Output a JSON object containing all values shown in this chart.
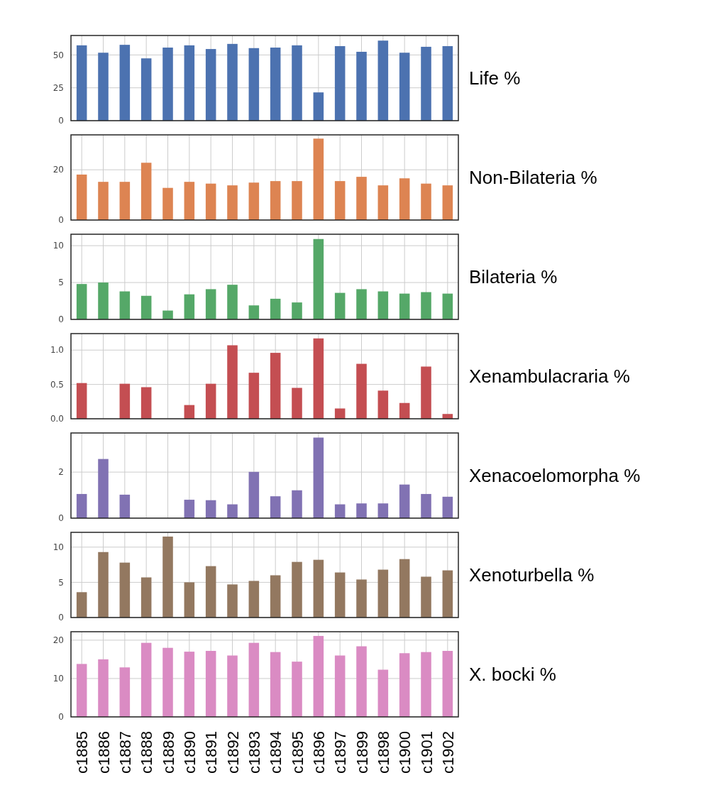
{
  "chart_data": [
    {
      "type": "bar",
      "ylabel": "Life %",
      "categories": [
        null,
        null,
        null,
        null,
        null,
        null,
        null,
        null,
        null,
        null,
        null,
        null,
        null,
        null,
        null,
        null,
        null,
        null
      ],
      "values": [
        57.3,
        51.7,
        57.7,
        47.4,
        55.6,
        57.3,
        54.5,
        58.4,
        55.2,
        55.6,
        57.3,
        21.5,
        56.7,
        52.4,
        60.9,
        51.7,
        56.2,
        56.7
      ],
      "color": "#4c72b0",
      "ylim": [
        0,
        64.8
      ],
      "yticks": [
        0,
        25,
        50
      ],
      "grid": true,
      "tick_labels": "y"
    },
    {
      "type": "bar",
      "ylabel": "Non-Bilateria %",
      "categories": [
        null,
        null,
        null,
        null,
        null,
        null,
        null,
        null,
        null,
        null,
        null,
        null,
        null,
        null,
        null,
        null,
        null,
        null
      ],
      "values": [
        18.1,
        15.2,
        15.2,
        22.8,
        12.8,
        15.2,
        14.5,
        13.8,
        14.9,
        15.5,
        15.5,
        32.4,
        15.5,
        17.2,
        13.8,
        16.6,
        14.5,
        13.8
      ],
      "color": "#dd8452",
      "ylim": [
        0,
        33.9
      ],
      "yticks": [
        0,
        20
      ],
      "grid": true,
      "tick_labels": "y"
    },
    {
      "type": "bar",
      "ylabel": "Bilateria %",
      "categories": [
        null,
        null,
        null,
        null,
        null,
        null,
        null,
        null,
        null,
        null,
        null,
        null,
        null,
        null,
        null,
        null,
        null,
        null
      ],
      "values": [
        4.8,
        5.0,
        3.8,
        3.2,
        1.2,
        3.4,
        4.1,
        4.7,
        1.9,
        2.8,
        2.3,
        10.9,
        3.6,
        4.1,
        3.8,
        3.5,
        3.7,
        3.5
      ],
      "color": "#55a868",
      "ylim": [
        0,
        11.55
      ],
      "yticks": [
        0,
        5,
        10
      ],
      "grid": true,
      "tick_labels": "y"
    },
    {
      "type": "bar",
      "ylabel": "Xenambulacraria %",
      "categories": [
        null,
        null,
        null,
        null,
        null,
        null,
        null,
        null,
        null,
        null,
        null,
        null,
        null,
        null,
        null,
        null,
        null,
        null
      ],
      "values": [
        0.52,
        0,
        0.51,
        0.46,
        0,
        0.2,
        0.51,
        1.07,
        0.67,
        0.96,
        0.45,
        1.17,
        0.15,
        0.8,
        0.41,
        0.23,
        0.76,
        0.07
      ],
      "color": "#c44e52",
      "ylim": [
        0,
        1.24
      ],
      "yticks": [
        {
          "value": 0,
          "label": "0.0"
        },
        {
          "value": 0.5,
          "label": "0.5"
        },
        {
          "value": 1,
          "label": "1.0"
        }
      ],
      "grid": true,
      "tick_labels": "y"
    },
    {
      "type": "bar",
      "ylabel": "Xenacoelomorpha %",
      "categories": [
        null,
        null,
        null,
        null,
        null,
        null,
        null,
        null,
        null,
        null,
        null,
        null,
        null,
        null,
        null,
        null,
        null,
        null
      ],
      "values": [
        1.05,
        2.57,
        1.02,
        0,
        0,
        0.8,
        0.78,
        0.6,
        2.01,
        0.95,
        1.21,
        3.5,
        0.6,
        0.64,
        0.64,
        1.46,
        1.05,
        0.93
      ],
      "color": "#8172b3",
      "ylim": [
        0,
        3.7
      ],
      "yticks": [
        0,
        2
      ],
      "grid": true,
      "tick_labels": "y"
    },
    {
      "type": "bar",
      "ylabel": "Xenoturbella %",
      "categories": [
        null,
        null,
        null,
        null,
        null,
        null,
        null,
        null,
        null,
        null,
        null,
        null,
        null,
        null,
        null,
        null,
        null,
        null
      ],
      "values": [
        3.6,
        9.3,
        7.8,
        5.7,
        11.5,
        5.0,
        7.3,
        4.7,
        5.2,
        6.0,
        7.9,
        8.2,
        6.4,
        5.4,
        6.8,
        8.3,
        5.8,
        6.7
      ],
      "color": "#937860",
      "ylim": [
        0,
        12.1
      ],
      "yticks": [
        0,
        5,
        10
      ],
      "grid": true,
      "tick_labels": "y"
    },
    {
      "type": "bar",
      "ylabel": "X. bocki %",
      "categories": [
        "c1885",
        "c1886",
        "c1887",
        "c1888",
        "c1889",
        "c1890",
        "c1891",
        "c1892",
        "c1893",
        "c1894",
        "c1895",
        "c1896",
        "c1897",
        "c1899",
        "c1898",
        "c1900",
        "c1901",
        "c1902"
      ],
      "values": [
        13.8,
        15.0,
        12.9,
        19.3,
        18.0,
        17.0,
        17.2,
        16.0,
        19.3,
        16.9,
        14.4,
        21.1,
        16.0,
        18.4,
        12.3,
        16.6,
        16.9,
        17.2
      ],
      "color": "#da8bc3",
      "ylim": [
        0,
        22.2
      ],
      "yticks": [
        0,
        10,
        20
      ],
      "grid": true
    }
  ]
}
